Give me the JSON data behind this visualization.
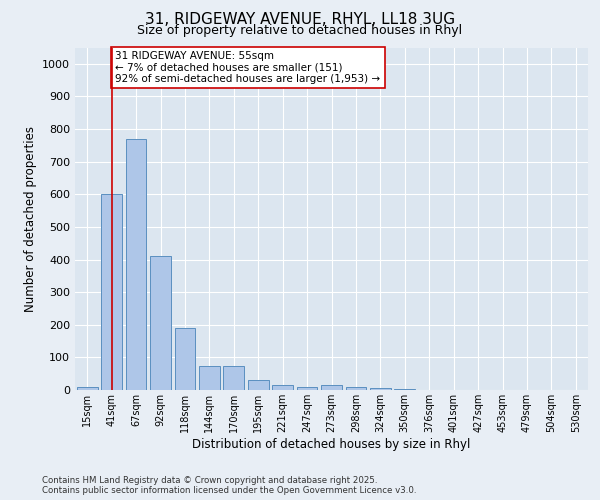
{
  "title_line1": "31, RIDGEWAY AVENUE, RHYL, LL18 3UG",
  "title_line2": "Size of property relative to detached houses in Rhyl",
  "xlabel": "Distribution of detached houses by size in Rhyl",
  "ylabel": "Number of detached properties",
  "categories": [
    "15sqm",
    "41sqm",
    "67sqm",
    "92sqm",
    "118sqm",
    "144sqm",
    "170sqm",
    "195sqm",
    "221sqm",
    "247sqm",
    "273sqm",
    "298sqm",
    "324sqm",
    "350sqm",
    "376sqm",
    "401sqm",
    "427sqm",
    "453sqm",
    "479sqm",
    "504sqm",
    "530sqm"
  ],
  "values": [
    10,
    600,
    770,
    410,
    190,
    75,
    75,
    30,
    15,
    10,
    15,
    10,
    5,
    2,
    1,
    1,
    0,
    0,
    0,
    0,
    0
  ],
  "bar_color": "#aec6e8",
  "bar_edge_color": "#5a8fc0",
  "vline_x": 1,
  "vline_color": "#cc0000",
  "annotation_text": "31 RIDGEWAY AVENUE: 55sqm\n← 7% of detached houses are smaller (151)\n92% of semi-detached houses are larger (1,953) →",
  "annotation_box_color": "#ffffff",
  "annotation_box_edge": "#cc0000",
  "ylim": [
    0,
    1050
  ],
  "yticks": [
    0,
    100,
    200,
    300,
    400,
    500,
    600,
    700,
    800,
    900,
    1000
  ],
  "footer_line1": "Contains HM Land Registry data © Crown copyright and database right 2025.",
  "footer_line2": "Contains public sector information licensed under the Open Government Licence v3.0.",
  "background_color": "#e8eef5",
  "plot_bg_color": "#dce6f0"
}
